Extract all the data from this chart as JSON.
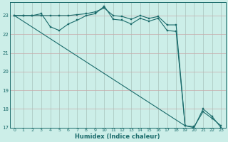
{
  "xlabel": "Humidex (Indice chaleur)",
  "bg_color": "#cceee8",
  "line_color": "#1a6b6b",
  "grid_color_v": "#b8c8c0",
  "grid_color_h": "#c4b4b4",
  "xlim": [
    -0.5,
    23.5
  ],
  "ylim": [
    17,
    23.7
  ],
  "line1_x": [
    0,
    1,
    2,
    3,
    4,
    5,
    6,
    7,
    8,
    9,
    10,
    11,
    12,
    13,
    14,
    15,
    16,
    17,
    18,
    19,
    20,
    21,
    22,
    23
  ],
  "line1_y": [
    23.0,
    23.0,
    23.0,
    23.1,
    22.4,
    22.2,
    22.55,
    22.75,
    23.0,
    23.1,
    23.5,
    22.8,
    22.75,
    22.55,
    22.85,
    22.7,
    22.85,
    22.2,
    22.15,
    17.1,
    17.05,
    17.85,
    17.5,
    17.1
  ],
  "line2_x": [
    0,
    1,
    2,
    3,
    4,
    5,
    6,
    7,
    8,
    9,
    10,
    11,
    12,
    13,
    14,
    15,
    16,
    17,
    18,
    19,
    20,
    21,
    22,
    23
  ],
  "line2_y": [
    23.0,
    23.0,
    23.0,
    23.0,
    23.0,
    23.0,
    23.0,
    23.05,
    23.1,
    23.2,
    23.4,
    23.0,
    22.95,
    22.8,
    23.0,
    22.85,
    22.95,
    22.5,
    22.5,
    17.1,
    17.0,
    18.0,
    17.6,
    17.0
  ],
  "line3_x": [
    0,
    19
  ],
  "line3_y": [
    23.0,
    17.1
  ],
  "marker_x1": [
    0,
    1,
    2,
    3,
    4,
    5,
    6,
    7,
    8,
    9,
    10,
    11,
    12,
    13,
    14,
    15,
    16,
    17,
    18,
    19,
    20,
    21,
    22,
    23
  ],
  "marker_x2": [
    3,
    4,
    5,
    6,
    7,
    8,
    9,
    10,
    11,
    12,
    13,
    14,
    15,
    16,
    17,
    18,
    19,
    20,
    21,
    22,
    23
  ]
}
